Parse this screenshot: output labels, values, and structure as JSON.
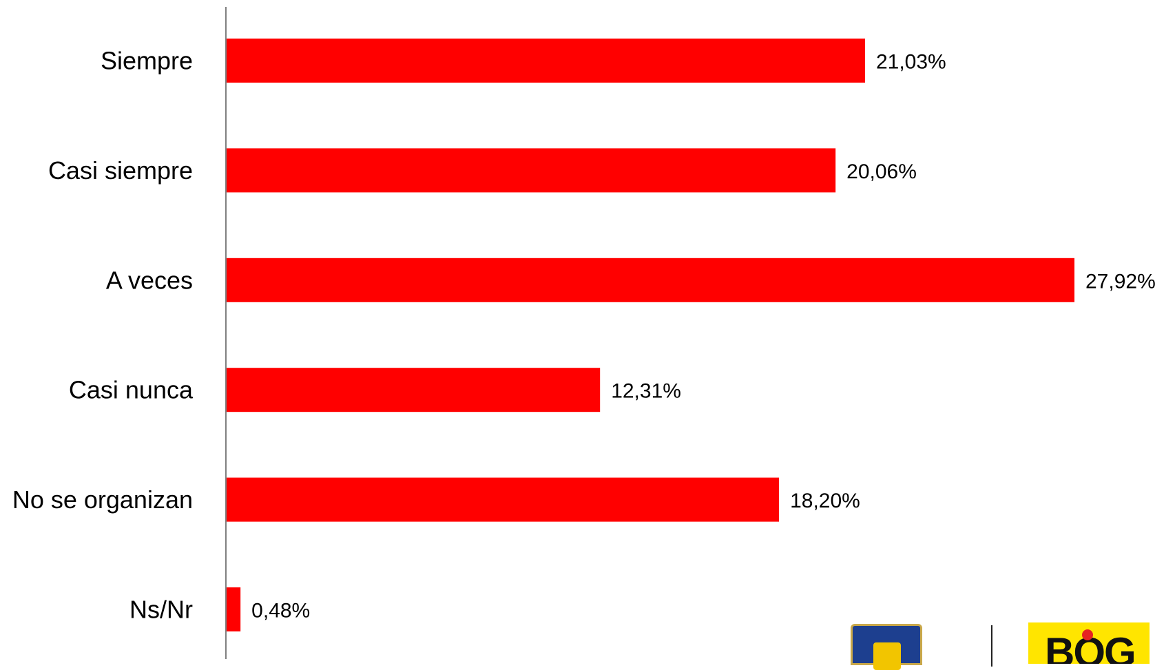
{
  "chart_data": {
    "type": "bar",
    "orientation": "horizontal",
    "categories": [
      "Siempre",
      "Casi siempre",
      "A veces",
      "Casi nunca",
      "No se organizan",
      "Ns/Nr"
    ],
    "values": [
      21.03,
      20.06,
      27.92,
      12.31,
      18.2,
      0.48
    ],
    "data_labels": [
      "21,03%",
      "20,06%",
      "27,92%",
      "12,31%",
      "18,20%",
      "0,48%"
    ],
    "xlim": [
      0,
      27.92
    ],
    "grid": false,
    "legend": "none",
    "bar_color": "#ff0000",
    "axis_color": "#808080",
    "title": "",
    "xlabel": "",
    "ylabel": ""
  },
  "logos": {
    "left_icon": "bogota-coat-of-arms-icon",
    "right_icon": "bog-logo-icon",
    "right_text": "BOG"
  }
}
